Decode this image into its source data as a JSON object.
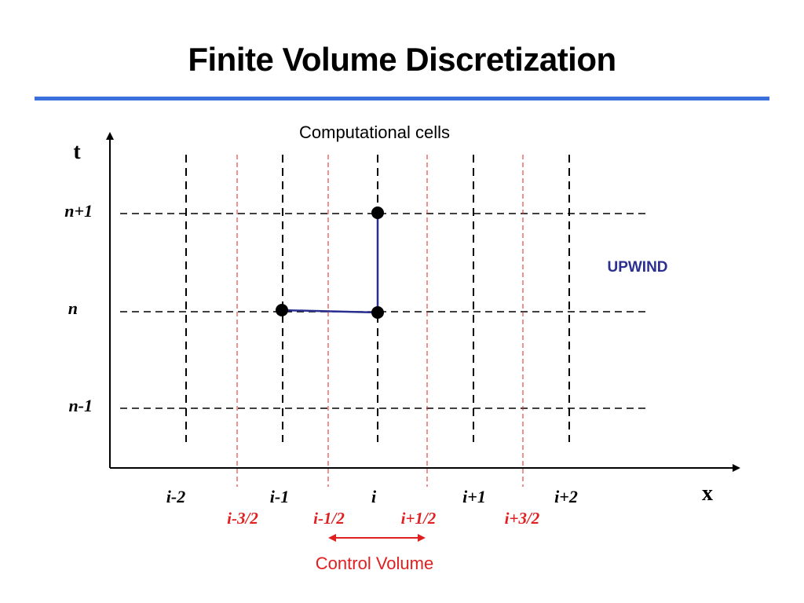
{
  "title": "Finite Volume Discretization",
  "diagram": {
    "caption_top": "Computational cells",
    "caption_bottom": "Control Volume",
    "scheme_label": "UPWIND",
    "axis_t_label": "t",
    "axis_x_label": "x",
    "time_levels": [
      "n+1",
      "n",
      "n-1"
    ],
    "cell_labels": [
      "i-2",
      "i-1",
      "i",
      "i+1",
      "i+2"
    ],
    "face_labels": [
      "i-3/2",
      "i-1/2",
      "i+1/2",
      "i+3/2"
    ],
    "stencil_nodes": [
      {
        "cell": "i",
        "level": "n+1"
      },
      {
        "cell": "i-1",
        "level": "n"
      },
      {
        "cell": "i",
        "level": "n"
      }
    ]
  },
  "colors": {
    "accent_rule": "#3a6fdc",
    "face_lines": "#e02020",
    "stencil": "#2b2f8f",
    "scheme_label": "#2b2f8f",
    "face_labels": "#e02020"
  }
}
